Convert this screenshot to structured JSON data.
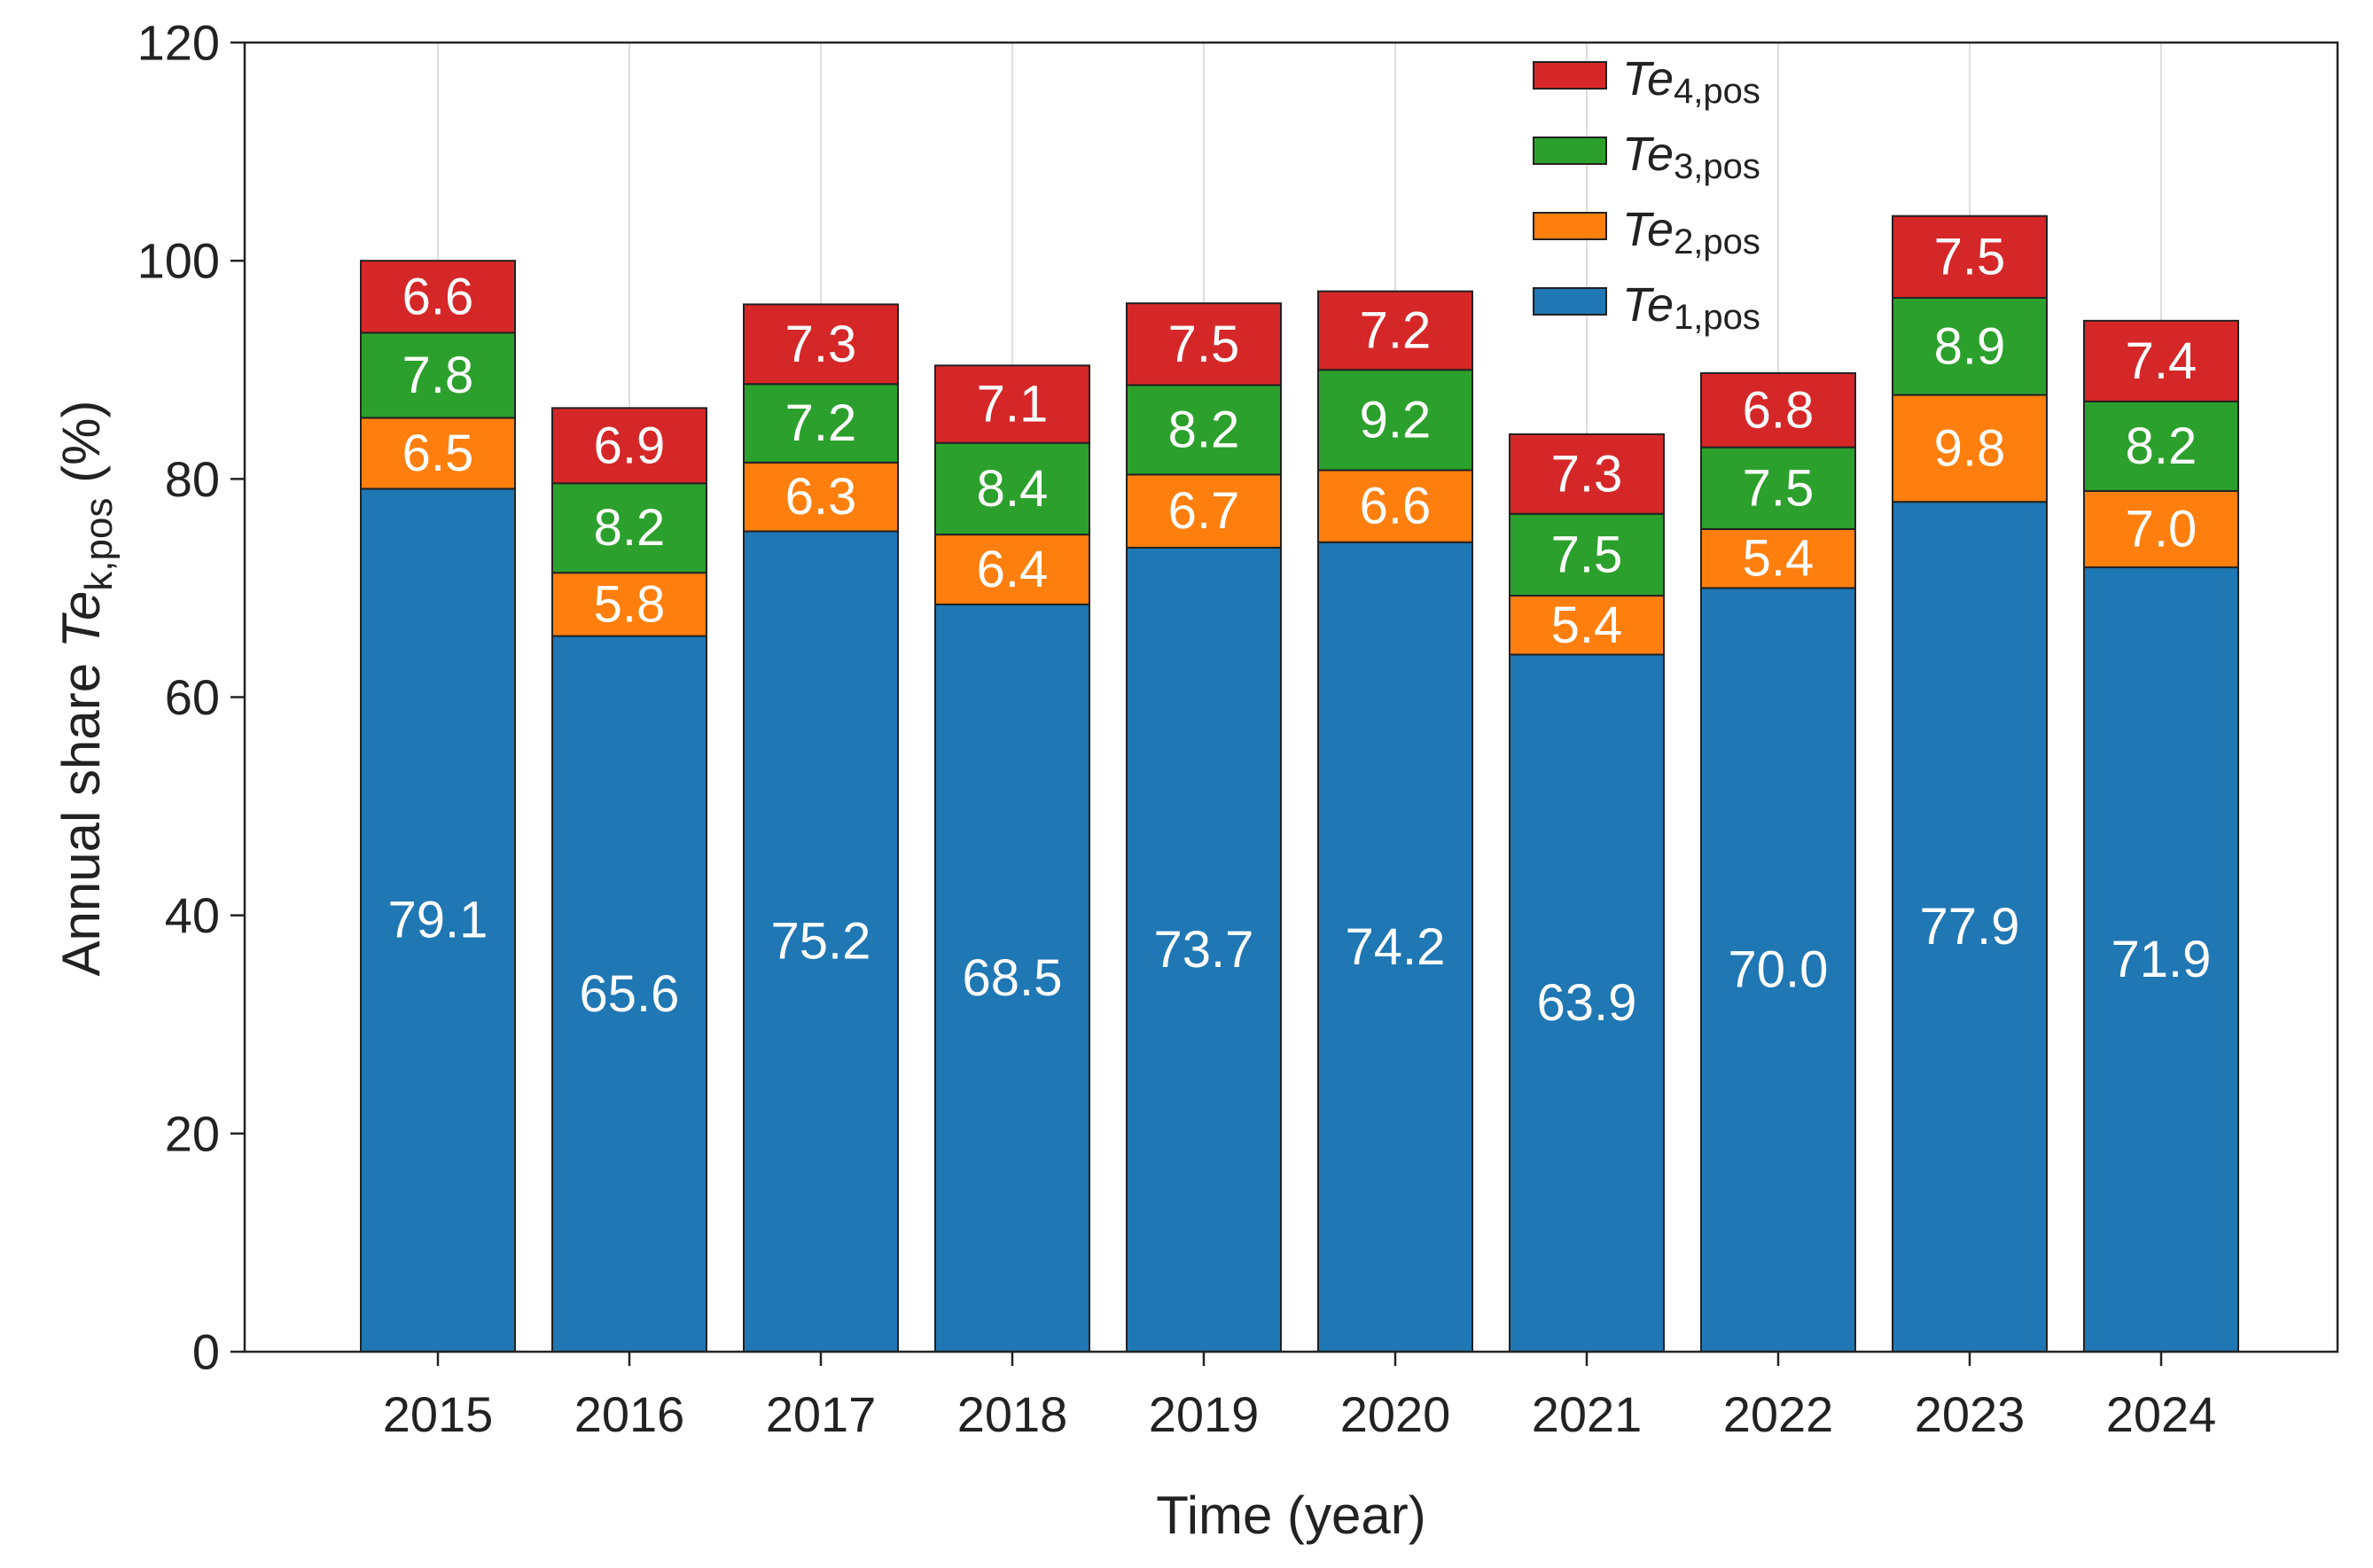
{
  "chart_data": {
    "type": "bar",
    "stacked": true,
    "categories": [
      "2015",
      "2016",
      "2017",
      "2018",
      "2019",
      "2020",
      "2021",
      "2022",
      "2023",
      "2024"
    ],
    "series": [
      {
        "name": "Te1,pos",
        "label_base": "Te",
        "label_sub": "1,pos",
        "color": "#1f77b4",
        "label_color": "#ffffff",
        "values": [
          79.1,
          65.6,
          75.2,
          68.5,
          73.7,
          74.2,
          63.9,
          70.0,
          77.9,
          71.9
        ]
      },
      {
        "name": "Te2,pos",
        "label_base": "Te",
        "label_sub": "2,pos",
        "color": "#ff7f0e",
        "label_color": "#ffffff",
        "values": [
          6.5,
          5.8,
          6.3,
          6.4,
          6.7,
          6.6,
          5.4,
          5.4,
          9.8,
          7.0
        ]
      },
      {
        "name": "Te3,pos",
        "label_base": "Te",
        "label_sub": "3,pos",
        "color": "#2ca02c",
        "label_color": "#ffffff",
        "values": [
          7.8,
          8.2,
          7.2,
          8.4,
          8.2,
          9.2,
          7.5,
          7.5,
          8.9,
          8.2
        ]
      },
      {
        "name": "Te4,pos",
        "label_base": "Te",
        "label_sub": "4,pos",
        "color": "#d62728",
        "label_color": "#ffffff",
        "values": [
          6.6,
          6.9,
          7.3,
          7.1,
          7.5,
          7.2,
          7.3,
          6.8,
          7.5,
          7.4
        ]
      }
    ],
    "xlabel": "Time (year)",
    "ylabel": {
      "prefix": "Annual share ",
      "italic": "Te",
      "sub": "k,pos",
      "suffix": " (%)"
    },
    "ylim": [
      0,
      120
    ],
    "yticks": [
      0,
      20,
      40,
      60,
      80,
      100,
      120
    ],
    "grid": "vertical",
    "legend_position": "top-right"
  }
}
